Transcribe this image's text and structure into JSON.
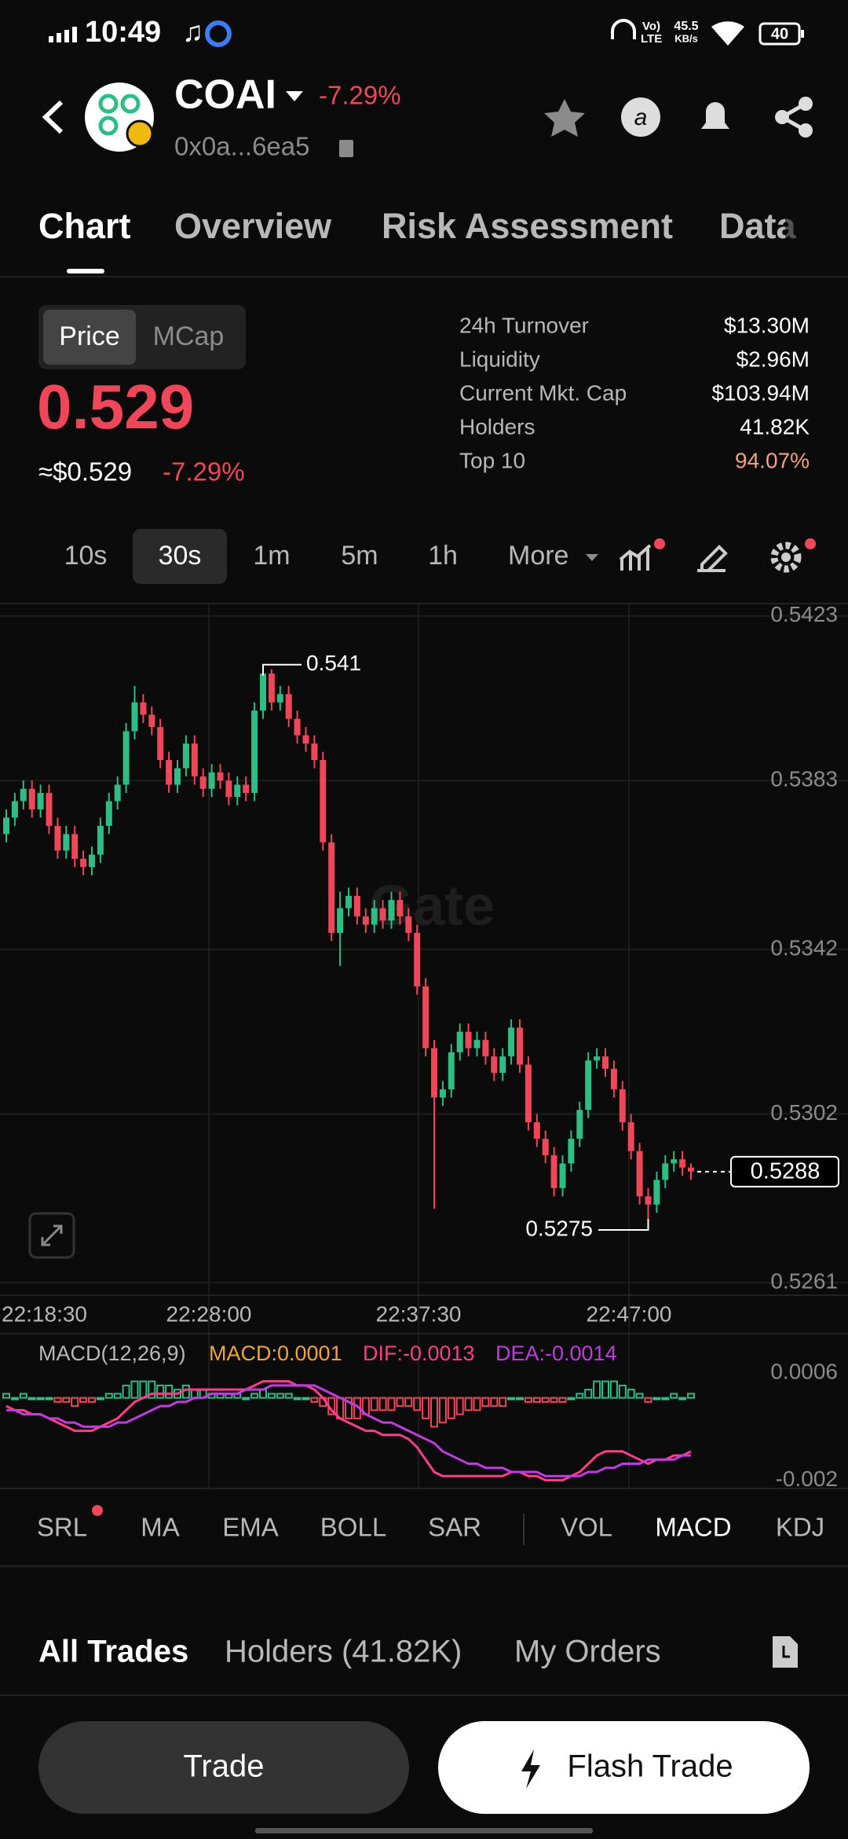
{
  "status_bar": {
    "time": "10:49",
    "network": "Vo)",
    "network_type": "LTE",
    "net_speed": "45.5",
    "net_unit": "KB/s",
    "battery": "40"
  },
  "header": {
    "symbol": "COAI",
    "change": "-7.29%",
    "address": "0x0a...6ea5"
  },
  "tabs": [
    "Chart",
    "Overview",
    "Risk Assessment",
    "Data"
  ],
  "price_toggle": [
    "Price",
    "MCap"
  ],
  "price": "0.529",
  "price_usd": "≈$0.529",
  "price_change": "-7.29%",
  "stats": [
    {
      "label": "24h Turnover",
      "value": "$13.30M"
    },
    {
      "label": "Liquidity",
      "value": "$2.96M"
    },
    {
      "label": "Current Mkt. Cap",
      "value": "$103.94M"
    },
    {
      "label": "Holders",
      "value": "41.82K"
    },
    {
      "label": "Top 10",
      "value": "94.07%"
    }
  ],
  "intervals": [
    "10s",
    "30s",
    "1m",
    "5m",
    "1h",
    "More"
  ],
  "chart": {
    "type": "candlestick",
    "watermark": "Gate",
    "ylim": [
      0.5258,
      0.5426
    ],
    "yticks": [
      0.5423,
      0.5383,
      0.5342,
      0.5302,
      0.5261
    ],
    "xlabels": [
      "22:18:30",
      "22:28:00",
      "22:37:30",
      "22:47:00"
    ],
    "high_label": 0.541,
    "low_label": 0.5275,
    "last_price": 0.5288,
    "candles": [
      [
        0.537,
        0.5376,
        0.5368,
        0.5374
      ],
      [
        0.5374,
        0.538,
        0.5372,
        0.5378
      ],
      [
        0.5378,
        0.5383,
        0.5376,
        0.5381
      ],
      [
        0.5381,
        0.5383,
        0.5374,
        0.5376
      ],
      [
        0.5376,
        0.5382,
        0.5374,
        0.538
      ],
      [
        0.538,
        0.5382,
        0.537,
        0.5372
      ],
      [
        0.5372,
        0.5374,
        0.5364,
        0.5366
      ],
      [
        0.5366,
        0.5372,
        0.5364,
        0.537
      ],
      [
        0.537,
        0.5372,
        0.5362,
        0.5364
      ],
      [
        0.5364,
        0.5366,
        0.536,
        0.5362
      ],
      [
        0.5362,
        0.5367,
        0.536,
        0.5365
      ],
      [
        0.5365,
        0.5374,
        0.5363,
        0.5372
      ],
      [
        0.5372,
        0.538,
        0.537,
        0.5378
      ],
      [
        0.5378,
        0.5384,
        0.5376,
        0.5382
      ],
      [
        0.5382,
        0.5397,
        0.538,
        0.5395
      ],
      [
        0.5395,
        0.5406,
        0.5393,
        0.5402
      ],
      [
        0.5402,
        0.5404,
        0.5397,
        0.5399
      ],
      [
        0.5399,
        0.5401,
        0.5394,
        0.5396
      ],
      [
        0.5396,
        0.5398,
        0.5386,
        0.5388
      ],
      [
        0.5388,
        0.539,
        0.538,
        0.5382
      ],
      [
        0.5382,
        0.5388,
        0.538,
        0.5386
      ],
      [
        0.5386,
        0.5394,
        0.5384,
        0.5392
      ],
      [
        0.5392,
        0.5394,
        0.5382,
        0.5384
      ],
      [
        0.5384,
        0.5386,
        0.5379,
        0.5381
      ],
      [
        0.5381,
        0.5387,
        0.5379,
        0.5385
      ],
      [
        0.5385,
        0.5387,
        0.5381,
        0.5383
      ],
      [
        0.5383,
        0.5385,
        0.5377,
        0.5379
      ],
      [
        0.5379,
        0.5384,
        0.5377,
        0.5382
      ],
      [
        0.5382,
        0.5384,
        0.5378,
        0.538
      ],
      [
        0.538,
        0.5402,
        0.5378,
        0.54
      ],
      [
        0.54,
        0.541,
        0.5398,
        0.5409
      ],
      [
        0.5409,
        0.541,
        0.54,
        0.5402
      ],
      [
        0.5402,
        0.5406,
        0.54,
        0.5404
      ],
      [
        0.5404,
        0.5406,
        0.5396,
        0.5398
      ],
      [
        0.5398,
        0.54,
        0.5392,
        0.5394
      ],
      [
        0.5394,
        0.5396,
        0.539,
        0.5392
      ],
      [
        0.5392,
        0.5394,
        0.5386,
        0.5388
      ],
      [
        0.5388,
        0.539,
        0.5366,
        0.5368
      ],
      [
        0.5368,
        0.537,
        0.5344,
        0.5346
      ],
      [
        0.5346,
        0.5356,
        0.5338,
        0.5352
      ],
      [
        0.5352,
        0.5357,
        0.535,
        0.5355
      ],
      [
        0.5355,
        0.5357,
        0.5348,
        0.535
      ],
      [
        0.535,
        0.5352,
        0.5346,
        0.5348
      ],
      [
        0.5348,
        0.5354,
        0.5346,
        0.5352
      ],
      [
        0.5352,
        0.5354,
        0.5347,
        0.5349
      ],
      [
        0.5349,
        0.5356,
        0.5347,
        0.5354
      ],
      [
        0.5354,
        0.5356,
        0.5348,
        0.535
      ],
      [
        0.535,
        0.5352,
        0.5344,
        0.5346
      ],
      [
        0.5346,
        0.5348,
        0.5331,
        0.5333
      ],
      [
        0.5333,
        0.5335,
        0.5316,
        0.5318
      ],
      [
        0.5318,
        0.532,
        0.5279,
        0.5306
      ],
      [
        0.5306,
        0.531,
        0.5304,
        0.5308
      ],
      [
        0.5308,
        0.5319,
        0.5306,
        0.5317
      ],
      [
        0.5317,
        0.5324,
        0.5315,
        0.5322
      ],
      [
        0.5322,
        0.5324,
        0.5316,
        0.5318
      ],
      [
        0.5318,
        0.5322,
        0.5316,
        0.532
      ],
      [
        0.532,
        0.5322,
        0.5314,
        0.5316
      ],
      [
        0.5316,
        0.5318,
        0.531,
        0.5312
      ],
      [
        0.5312,
        0.5318,
        0.531,
        0.5316
      ],
      [
        0.5316,
        0.5325,
        0.5314,
        0.5323
      ],
      [
        0.5323,
        0.5325,
        0.5312,
        0.5314
      ],
      [
        0.5314,
        0.5316,
        0.5298,
        0.53
      ],
      [
        0.53,
        0.5302,
        0.5294,
        0.5296
      ],
      [
        0.5296,
        0.5298,
        0.529,
        0.5292
      ],
      [
        0.5292,
        0.5294,
        0.5282,
        0.5284
      ],
      [
        0.5284,
        0.5292,
        0.5282,
        0.529
      ],
      [
        0.529,
        0.5298,
        0.5288,
        0.5296
      ],
      [
        0.5296,
        0.5305,
        0.5294,
        0.5303
      ],
      [
        0.5303,
        0.5317,
        0.5301,
        0.5315
      ],
      [
        0.5315,
        0.5318,
        0.5313,
        0.5316
      ],
      [
        0.5316,
        0.5318,
        0.5311,
        0.5313
      ],
      [
        0.5313,
        0.5315,
        0.5306,
        0.5308
      ],
      [
        0.5308,
        0.531,
        0.5298,
        0.53
      ],
      [
        0.53,
        0.5302,
        0.5291,
        0.5293
      ],
      [
        0.5293,
        0.5295,
        0.528,
        0.5282
      ],
      [
        0.5282,
        0.5284,
        0.5275,
        0.528
      ],
      [
        0.528,
        0.5288,
        0.5278,
        0.5286
      ],
      [
        0.5286,
        0.5292,
        0.5284,
        0.529
      ],
      [
        0.529,
        0.5293,
        0.5288,
        0.5291
      ],
      [
        0.5291,
        0.5293,
        0.5287,
        0.5289
      ],
      [
        0.5289,
        0.529,
        0.5286,
        0.5288
      ]
    ]
  },
  "macd": {
    "title": "MACD(12,26,9)",
    "macd_label": "MACD:0.0001",
    "dif_label": "DIF:-0.0013",
    "dea_label": "DEA:-0.0014",
    "ylim": [
      -0.0022,
      0.0015
    ],
    "yticks": [
      0.0006,
      -0.002
    ],
    "hist": [
      0.0001,
      0,
      0.0001,
      0,
      0,
      0,
      -0.0001,
      -0.0001,
      -0.0002,
      -0.0001,
      -0.0001,
      0,
      0.0001,
      0.0001,
      0.0003,
      0.0004,
      0.0004,
      0.0004,
      0.0003,
      0.0003,
      0.0002,
      0.0003,
      0.0002,
      0.0002,
      0.0001,
      0.0001,
      0.0001,
      0.0001,
      0,
      0.0001,
      0.0002,
      0.0001,
      0.0001,
      0.0001,
      0,
      0,
      -0.0001,
      -0.0002,
      -0.0004,
      -0.0005,
      -0.0005,
      -0.0005,
      -0.0004,
      -0.0003,
      -0.0003,
      -0.0003,
      -0.0002,
      -0.0002,
      -0.0003,
      -0.0005,
      -0.0007,
      -0.0006,
      -0.0005,
      -0.0004,
      -0.0003,
      -0.0003,
      -0.0002,
      -0.0002,
      -0.0002,
      0,
      0,
      -0.0001,
      -0.0001,
      -0.0001,
      -0.0001,
      -0.0001,
      0,
      0.0001,
      0.0002,
      0.0004,
      0.0004,
      0.0004,
      0.0003,
      0.0002,
      0.0001,
      -0.0001,
      0,
      0,
      0.0001,
      0,
      0.0001
    ],
    "dif": [
      -0.0002,
      -0.0003,
      -0.0003,
      -0.0004,
      -0.0004,
      -0.0005,
      -0.0006,
      -0.0007,
      -0.0008,
      -0.0008,
      -0.0008,
      -0.0007,
      -0.0006,
      -0.0005,
      -0.0003,
      -0.0001,
      0,
      0.0001,
      0.0001,
      0.0001,
      0.0001,
      0.0002,
      0.0002,
      0.0002,
      0.0002,
      0.0002,
      0.0002,
      0.0002,
      0.0002,
      0.0003,
      0.0004,
      0.0004,
      0.0004,
      0.0004,
      0.0003,
      0.0003,
      0.0002,
      0,
      -0.0003,
      -0.0005,
      -0.0006,
      -0.0007,
      -0.0008,
      -0.0008,
      -0.0009,
      -0.0009,
      -0.0009,
      -0.001,
      -0.0012,
      -0.0015,
      -0.0018,
      -0.0019,
      -0.0019,
      -0.0019,
      -0.0019,
      -0.0019,
      -0.0019,
      -0.0019,
      -0.0019,
      -0.0018,
      -0.0018,
      -0.0019,
      -0.0019,
      -0.002,
      -0.002,
      -0.002,
      -0.0019,
      -0.0018,
      -0.0016,
      -0.0014,
      -0.0013,
      -0.0013,
      -0.0013,
      -0.0014,
      -0.0015,
      -0.0016,
      -0.0015,
      -0.0015,
      -0.0014,
      -0.0014,
      -0.0013
    ],
    "dea": [
      -0.0003,
      -0.0003,
      -0.0004,
      -0.0004,
      -0.0004,
      -0.0005,
      -0.0005,
      -0.0006,
      -0.0006,
      -0.0007,
      -0.0007,
      -0.0007,
      -0.0007,
      -0.0006,
      -0.0006,
      -0.0005,
      -0.0004,
      -0.0003,
      -0.0002,
      -0.0002,
      -0.0001,
      -0.0001,
      0,
      0,
      0.0001,
      0.0001,
      0.0001,
      0.0001,
      0.0002,
      0.0002,
      0.0002,
      0.0003,
      0.0003,
      0.0003,
      0.0003,
      0.0003,
      0.0003,
      0.0002,
      0.0001,
      0,
      -0.0001,
      -0.0002,
      -0.0004,
      -0.0005,
      -0.0006,
      -0.0006,
      -0.0007,
      -0.0008,
      -0.0009,
      -0.001,
      -0.0011,
      -0.0013,
      -0.0014,
      -0.0015,
      -0.0016,
      -0.0016,
      -0.0017,
      -0.0017,
      -0.0017,
      -0.0018,
      -0.0018,
      -0.0018,
      -0.0018,
      -0.0019,
      -0.0019,
      -0.0019,
      -0.0019,
      -0.0019,
      -0.0018,
      -0.0018,
      -0.0017,
      -0.0017,
      -0.0016,
      -0.0016,
      -0.0016,
      -0.0015,
      -0.0015,
      -0.0015,
      -0.0015,
      -0.0014,
      -0.0014
    ]
  },
  "indicators": [
    "SRL",
    "MA",
    "EMA",
    "BOLL",
    "SAR",
    "VOL",
    "MACD",
    "KDJ"
  ],
  "bottom_tabs": [
    "All Trades",
    "Holders (41.82K)",
    "My Orders"
  ],
  "buttons": {
    "trade": "Trade",
    "flash": "Flash Trade"
  }
}
